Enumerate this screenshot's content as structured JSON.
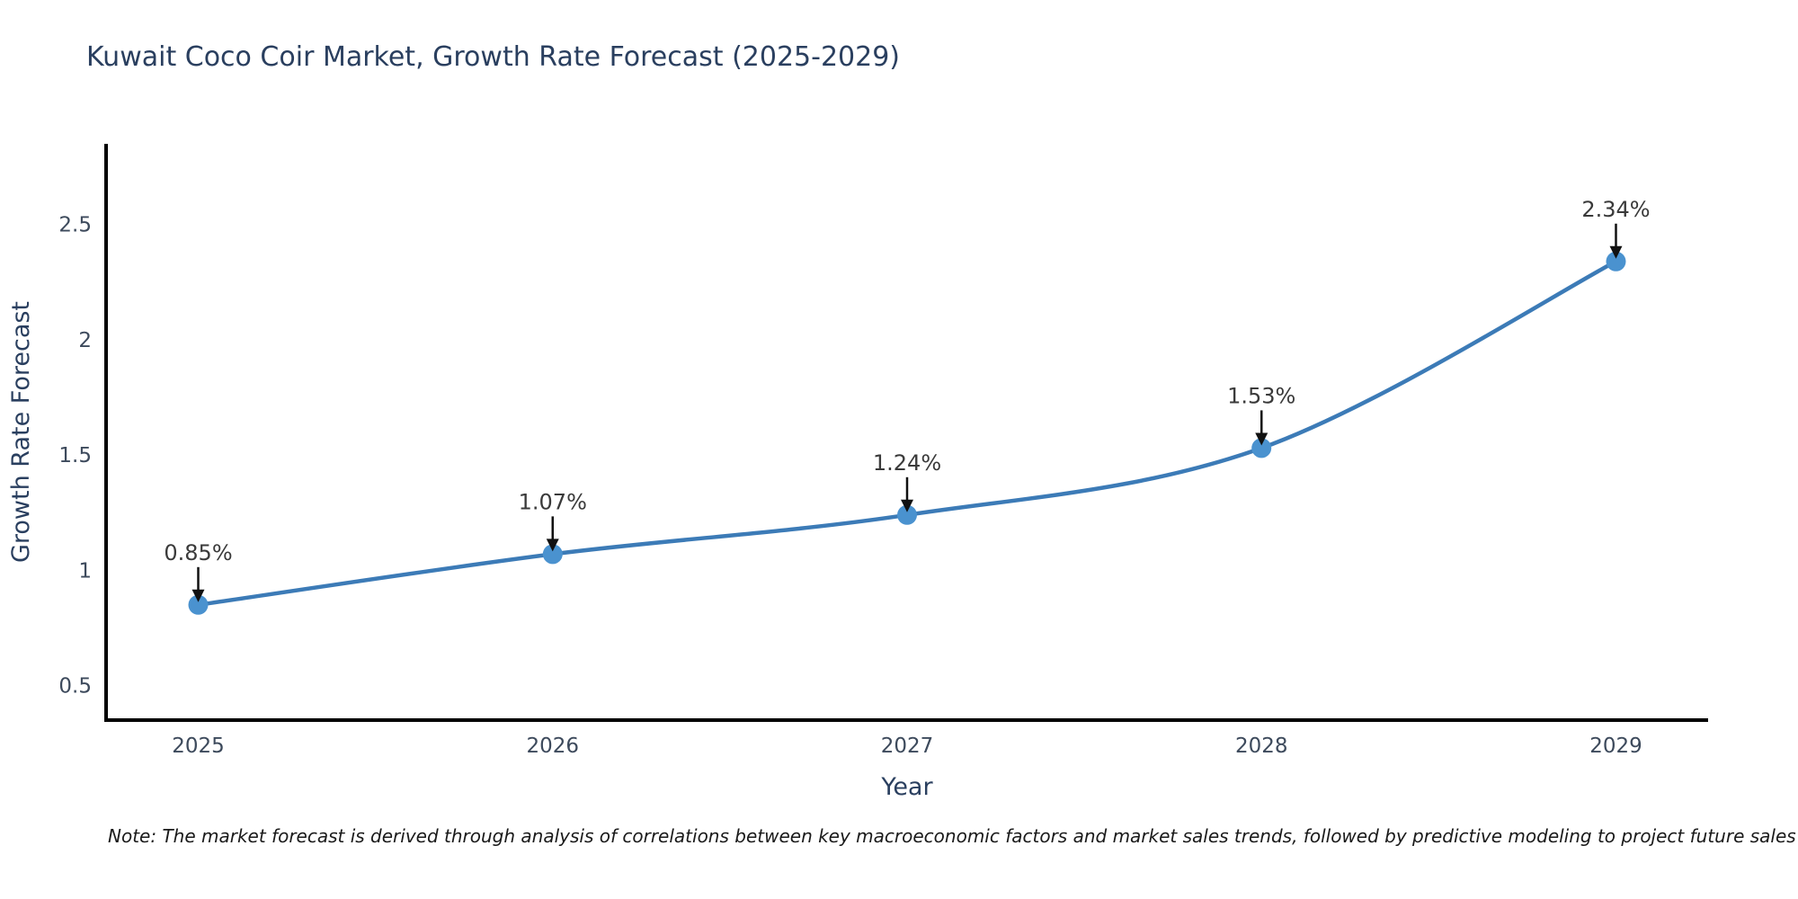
{
  "header": {
    "title": "Kuwait Coco Coir Market, Growth Rate Forecast (2025-2029)"
  },
  "chart_data": {
    "type": "line",
    "title": "Kuwait Coco Coir Market, Growth Rate Forecast (2025-2029)",
    "x": [
      2025,
      2026,
      2027,
      2028,
      2029
    ],
    "series": [
      {
        "name": "Growth Rate Forecast",
        "values": [
          0.85,
          1.07,
          1.24,
          1.53,
          2.34
        ]
      }
    ],
    "point_labels": [
      "0.85%",
      "1.07%",
      "1.24%",
      "1.53%",
      "2.34%"
    ],
    "xlabel": "Year",
    "ylabel": "Growth Rate Forecast",
    "xticks": [
      "2025",
      "2026",
      "2027",
      "2028",
      "2029"
    ],
    "yticks": [
      0.5,
      1,
      1.5,
      2,
      2.5
    ],
    "ytick_labels": [
      "0.5",
      "1",
      "1.5",
      "2",
      "2.5"
    ],
    "xlim": [
      2024.74,
      2029.26
    ],
    "ylim": [
      0.35,
      2.85
    ],
    "grid": false,
    "legend": "none",
    "line_smoothing": "spline",
    "colors": {
      "line": "#3c7bb7",
      "marker": "#4a92cf",
      "axis": "#000000",
      "tick_text": "#3d4a5c",
      "axis_label_text": "#2a3f5f",
      "title_text": "#2a3f5f",
      "annotation_text": "#3a3a3a",
      "annotation_arrow": "#111111"
    }
  },
  "footer": {
    "note": "Note: The market forecast is derived through analysis of correlations between key macroeconomic factors and market sales trends, followed by predictive modeling to project future sales"
  }
}
